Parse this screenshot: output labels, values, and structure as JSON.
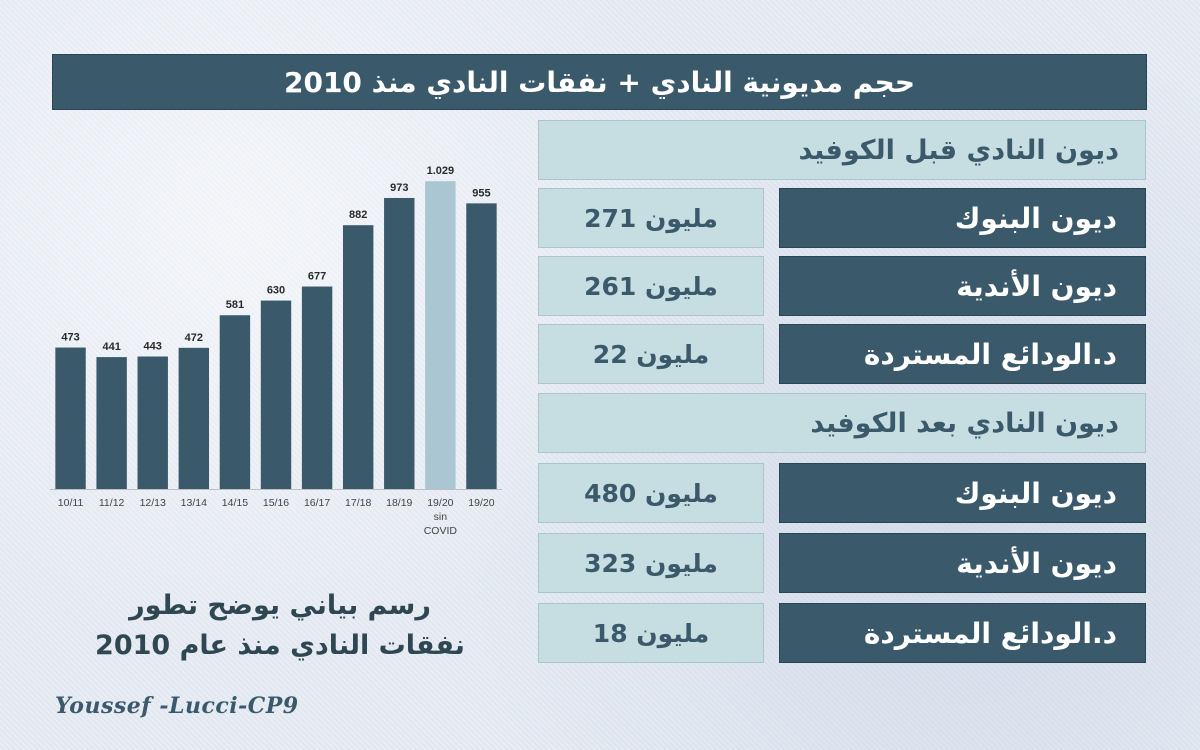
{
  "banner": {
    "title": "حجم مديونية النادي + نفقات النادي منذ 2010"
  },
  "before_covid": {
    "title": "ديون النادي قبل الكوفيد",
    "rows": [
      {
        "label": "ديون البنوك",
        "value": "مليون 271"
      },
      {
        "label": "ديون الأندية",
        "value": "مليون 261"
      },
      {
        "label": "د.الودائع المستردة",
        "value": "مليون 22"
      }
    ]
  },
  "after_covid": {
    "title": "ديون النادي بعد الكوفيد",
    "rows": [
      {
        "label": "ديون البنوك",
        "value": "مليون 480"
      },
      {
        "label": "ديون الأندية",
        "value": "مليون 323"
      },
      {
        "label": "د.الودائع المستردة",
        "value": "مليون 18"
      }
    ]
  },
  "caption": {
    "line1": "رسم بياني يوضح تطور",
    "line2": "نفقات النادي منذ عام 2010"
  },
  "signature": "Youssef -Lucci-CP9",
  "colors": {
    "bar": "#3a5a6b",
    "bar_highlight": "#aac6d3",
    "axis": "#bfbfbf"
  },
  "chart_data": {
    "type": "bar",
    "categories": [
      "10/11",
      "11/12",
      "12/13",
      "13/14",
      "14/15",
      "15/16",
      "16/17",
      "17/18",
      "18/19",
      "19/20 sin COVID",
      "19/20"
    ],
    "category_lines": [
      [
        "10/11"
      ],
      [
        "11/12"
      ],
      [
        "12/13"
      ],
      [
        "13/14"
      ],
      [
        "14/15"
      ],
      [
        "15/16"
      ],
      [
        "16/17"
      ],
      [
        "17/18"
      ],
      [
        "18/19"
      ],
      [
        "19/20",
        "sin",
        "COVID"
      ],
      [
        "19/20"
      ]
    ],
    "values": [
      473,
      441,
      443,
      472,
      581,
      630,
      677,
      882,
      973,
      1029,
      955
    ],
    "value_labels": [
      "473",
      "441",
      "443",
      "472",
      "581",
      "630",
      "677",
      "882",
      "973",
      "1.029",
      "955"
    ],
    "highlight_index": 9,
    "title": "",
    "xlabel": "",
    "ylabel": "",
    "ylim": [
      0,
      1100
    ],
    "grid": false
  }
}
